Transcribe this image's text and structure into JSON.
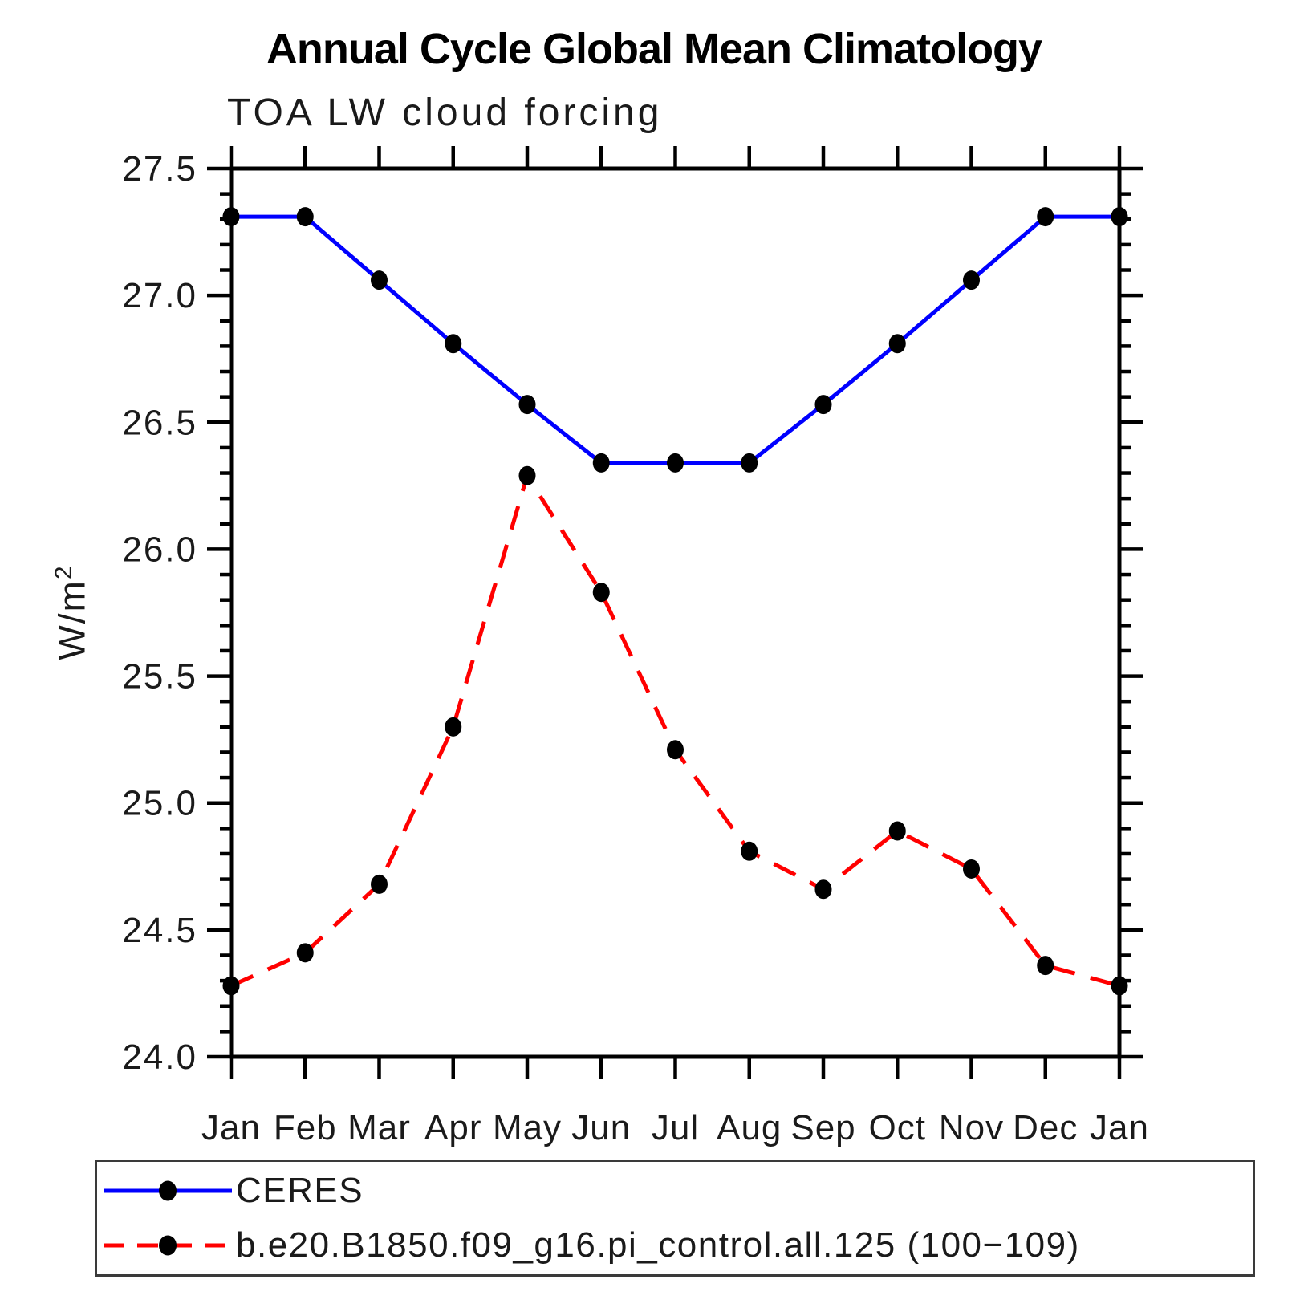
{
  "chart_data": {
    "type": "line",
    "title": "Annual Cycle Global Mean Climatology",
    "subtitle": "TOA LW cloud forcing",
    "ylabel": "W/m²",
    "ylabel_base": "W/m",
    "ylabel_exponent": "2",
    "xlabel": "",
    "x_categories": [
      "Jan",
      "Feb",
      "Mar",
      "Apr",
      "May",
      "Jun",
      "Jul",
      "Aug",
      "Sep",
      "Oct",
      "Nov",
      "Dec",
      "Jan"
    ],
    "ylim": [
      24.0,
      27.5
    ],
    "ytick_major_step": 0.5,
    "ytick_minor_step": 0.1,
    "ytick_labels": [
      "24.0",
      "24.5",
      "25.0",
      "25.5",
      "26.0",
      "26.5",
      "27.0",
      "27.5"
    ],
    "grid": false,
    "legend_position": "bottom",
    "marker": {
      "shape": "filled-ellipse",
      "color": "#000000"
    },
    "axis_color": "#000000",
    "series": [
      {
        "name": "CERES",
        "color": "#0000ff",
        "style": "solid",
        "values": [
          27.31,
          27.31,
          27.06,
          26.81,
          26.57,
          26.34,
          26.34,
          26.34,
          26.57,
          26.81,
          27.06,
          27.31,
          27.31
        ]
      },
      {
        "name": "b.e20.B1850.f09_g16.pi_control.all.125 (100−109)",
        "color": "#ff0000",
        "style": "dashed",
        "values": [
          24.28,
          24.41,
          24.68,
          25.3,
          26.29,
          25.83,
          25.21,
          24.81,
          24.66,
          24.89,
          24.74,
          24.36,
          24.28
        ]
      }
    ]
  }
}
